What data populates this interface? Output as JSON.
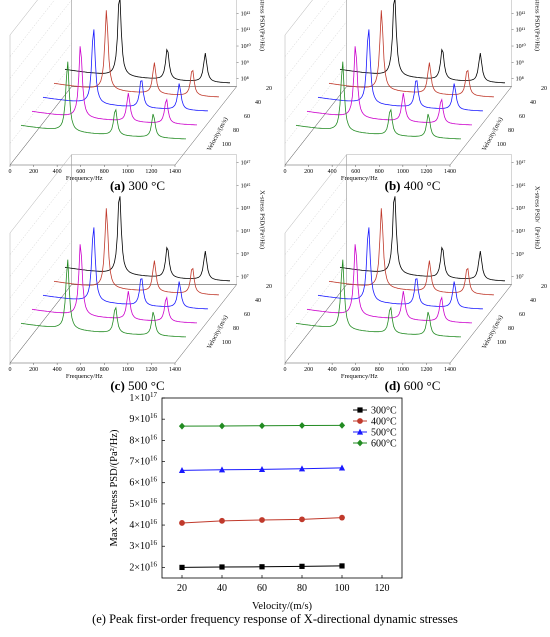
{
  "panels": [
    {
      "id": "a",
      "label_letter": "(a)",
      "label_rest": " 300 °C",
      "xlabel": "Frequency/Hz",
      "ylabel": "Velocity/(m/s)",
      "zlabel": "X-stress PSD/(Pa²/Hz)",
      "xticks": [
        "0",
        "200",
        "400",
        "600",
        "800",
        "1000",
        "1200",
        "1400"
      ],
      "yticks": [
        "20",
        "40",
        "60",
        "80",
        "100"
      ],
      "zticks": [
        "10¹⁵",
        "10¹⁴",
        "10¹³",
        "10¹²",
        "10¹¹",
        "10¹⁰",
        "10⁹",
        "10⁸"
      ]
    },
    {
      "id": "b",
      "label_letter": "(b)",
      "label_rest": " 400 °C",
      "xlabel": "Frequency/Hz",
      "ylabel": "Velocity/(m/s)",
      "zlabel": "X-stress PSD/(Pa²/Hz)",
      "xticks": [
        "0",
        "200",
        "400",
        "600",
        "800",
        "1000",
        "1200",
        "1400"
      ],
      "yticks": [
        "20",
        "40",
        "60",
        "80",
        "100"
      ],
      "zticks": [
        "10¹⁵",
        "10¹⁴",
        "10¹³",
        "10¹²",
        "10¹¹",
        "10¹⁰",
        "10⁹",
        "10⁸"
      ]
    },
    {
      "id": "c",
      "label_letter": "(c)",
      "label_rest": " 500 °C",
      "xlabel": "Frequency/Hz",
      "ylabel": "Velocity/(m/s)",
      "zlabel": "X-stress PSD/(Pa²/Hz)",
      "xticks": [
        "0",
        "200",
        "400",
        "600",
        "800",
        "1000",
        "1200",
        "1400"
      ],
      "yticks": [
        "20",
        "40",
        "60",
        "80",
        "100"
      ],
      "zticks": [
        "10¹⁷",
        "10¹⁵",
        "10¹³",
        "10¹¹",
        "10⁹",
        "10⁷"
      ]
    },
    {
      "id": "d",
      "label_letter": "(d)",
      "label_rest": " 600 °C",
      "xlabel": "Frequency/Hz",
      "ylabel": "Velocity/(m/s)",
      "zlabel": "X-stress PSD/（Pa²/Hz）",
      "xticks": [
        "0",
        "200",
        "400",
        "600",
        "800",
        "1000",
        "1200",
        "1400"
      ],
      "yticks": [
        "20",
        "40",
        "60",
        "80",
        "100"
      ],
      "zticks": [
        "10¹⁷",
        "10¹⁵",
        "10¹³",
        "10¹¹",
        "10⁹",
        "10⁷"
      ]
    }
  ],
  "colors": {
    "v20": "#000000",
    "v40": "#c0392b",
    "v60": "#1a1aff",
    "v80": "#cc00cc",
    "v100": "#228b22"
  },
  "chart_data": {
    "type": "line",
    "title": "(e) Peak first-order frequency response of X-directional dynamic stresses",
    "xlabel": "Velocity/(m/s)",
    "ylabel": "Max X-stress PSD/(Pa²/Hz)",
    "xlim": [
      10,
      130
    ],
    "ylim": [
      1.5e+16,
      1e+17
    ],
    "xticks": [
      20,
      40,
      60,
      80,
      100,
      120
    ],
    "yticks": [
      {
        "v": 2e+16,
        "m": "2×10",
        "e": "16"
      },
      {
        "v": 3e+16,
        "m": "3×10",
        "e": "16"
      },
      {
        "v": 4e+16,
        "m": "4×10",
        "e": "16"
      },
      {
        "v": 5e+16,
        "m": "5×10",
        "e": "16"
      },
      {
        "v": 6e+16,
        "m": "6×10",
        "e": "16"
      },
      {
        "v": 7e+16,
        "m": "7×10",
        "e": "16"
      },
      {
        "v": 8e+16,
        "m": "8×10",
        "e": "16"
      },
      {
        "v": 9e+16,
        "m": "9×10",
        "e": "16"
      },
      {
        "v": 1e+17,
        "m": "1×10",
        "e": "17"
      }
    ],
    "x": [
      20,
      40,
      60,
      80,
      100
    ],
    "series": [
      {
        "name": "300°C",
        "color": "#000000",
        "marker": "square",
        "values": [
          2e+16,
          2.02e+16,
          2.03e+16,
          2.05e+16,
          2.07e+16
        ]
      },
      {
        "name": "400°C",
        "color": "#c0392b",
        "marker": "circle",
        "values": [
          4.1e+16,
          4.2e+16,
          4.24e+16,
          4.27e+16,
          4.35e+16
        ]
      },
      {
        "name": "500°C",
        "color": "#1a1aff",
        "marker": "triangle",
        "values": [
          6.58e+16,
          6.61e+16,
          6.63e+16,
          6.66e+16,
          6.7e+16
        ]
      },
      {
        "name": "600°C",
        "color": "#228b22",
        "marker": "diamond",
        "values": [
          8.67e+16,
          8.68e+16,
          8.69e+16,
          8.7e+16,
          8.71e+16
        ]
      }
    ],
    "legend_position": "top-right"
  }
}
